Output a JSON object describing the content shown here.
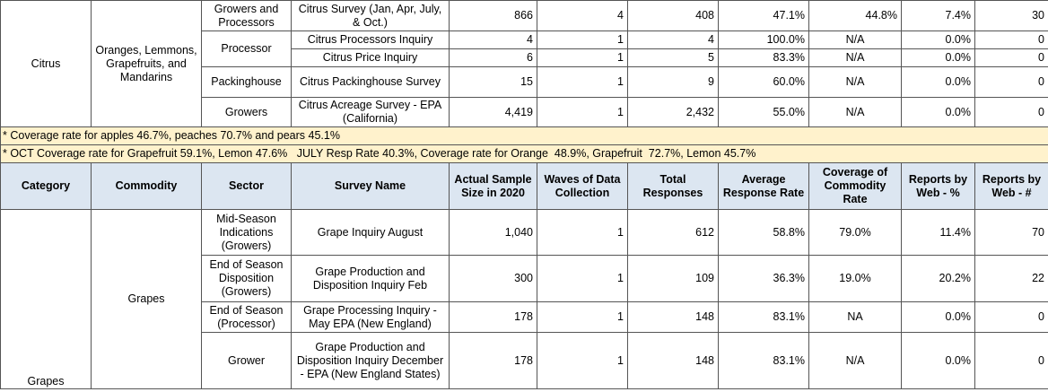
{
  "table": {
    "top": {
      "category": "Citrus",
      "commodity": "Oranges, Lemmons, Grapefruits, and Mandarins",
      "rows": [
        {
          "sector": "Growers and Processors",
          "survey": "Citrus Survey (Jan, Apr, July, & Oct.)",
          "cells": [
            "866",
            "4",
            "408",
            "47.1%",
            "44.8%",
            "7.4%",
            "30"
          ]
        },
        {
          "sector": "Processor",
          "survey": "Citrus Processors Inquiry",
          "cells": [
            "4",
            "1",
            "4",
            "100.0%",
            "N/A",
            "0.0%",
            "0"
          ]
        },
        {
          "survey": "Citrus Price Inquiry",
          "cells": [
            "6",
            "1",
            "5",
            "83.3%",
            "N/A",
            "0.0%",
            "0"
          ]
        },
        {
          "sector": "Packinghouse",
          "survey": "Citrus Packinghouse Survey",
          "cells": [
            "15",
            "1",
            "9",
            "60.0%",
            "N/A",
            "0.0%",
            "0"
          ]
        },
        {
          "sector": "Growers",
          "survey": "Citrus Acreage Survey - EPA (California)",
          "cells": [
            "4,419",
            "1",
            "2,432",
            "55.0%",
            "N/A",
            "0.0%",
            "0"
          ]
        }
      ]
    },
    "notes": [
      "* Coverage rate for apples 46.7%, peaches 70.7% and pears 45.1%",
      "* OCT Coverage rate for Grapefruit 59.1%, Lemon 47.6%   JULY Resp Rate 40.3%, Coverage rate for Orange  48.9%, Grapefruit  72.7%, Lemon 45.7%"
    ],
    "header": [
      "Category",
      "Commodity",
      "Sector",
      "Survey Name",
      "Actual Sample Size in 2020",
      "Waves of Data Collection",
      "Total Responses",
      "Average Response Rate",
      "Coverage of Commodity Rate",
      "Reports by Web - %",
      "Reports by Web - #"
    ],
    "grapes": {
      "category": "Grapes",
      "commodity": "Grapes",
      "rows": [
        {
          "sector": "Mid-Season Indications (Growers)",
          "survey": "Grape Inquiry August",
          "cells": [
            "1,040",
            "1",
            "612",
            "58.8%",
            "79.0%",
            "11.4%",
            "70"
          ]
        },
        {
          "sector": "End of Season Disposition (Growers)",
          "survey": "Grape Production and Disposition Inquiry Feb",
          "cells": [
            "300",
            "1",
            "109",
            "36.3%",
            "19.0%",
            "20.2%",
            "22"
          ]
        },
        {
          "sector": "End of Season (Processor)",
          "survey": "Grape Processing Inquiry - May EPA (New England)",
          "cells": [
            "178",
            "1",
            "148",
            "83.1%",
            "NA",
            "0.0%",
            "0"
          ]
        },
        {
          "sector": "Grower",
          "survey": "Grape Production and Disposition Inquiry December - EPA (New England States)",
          "cells": [
            "178",
            "1",
            "148",
            "83.1%",
            "N/A",
            "0.0%",
            "0"
          ]
        }
      ]
    }
  }
}
